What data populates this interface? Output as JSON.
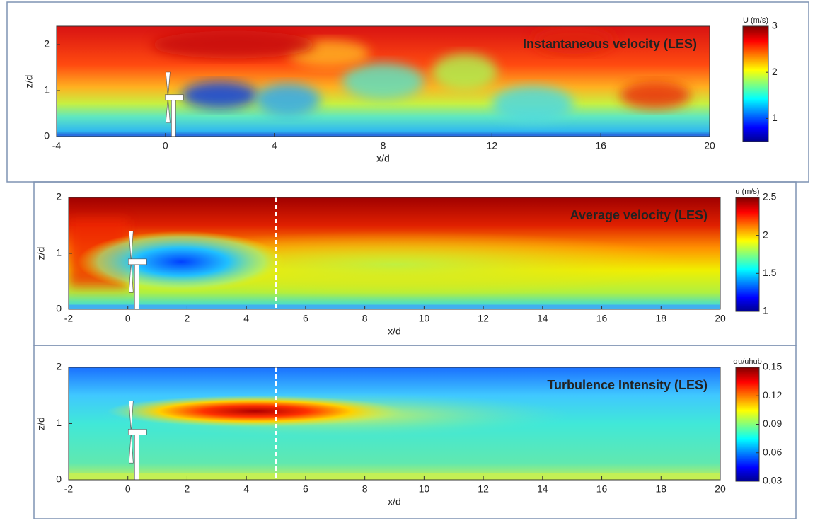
{
  "chart_data": [
    {
      "type": "heatmap",
      "title": "Instantaneous velocity (LES)",
      "title_color": "#ffffff",
      "xlabel": "x/d",
      "ylabel": "z/d",
      "xlim": [
        -4,
        20
      ],
      "xticks": [
        -4,
        0,
        4,
        8,
        12,
        16,
        20
      ],
      "ylim": [
        0,
        2.4
      ],
      "yticks": [
        0,
        1,
        2
      ],
      "colorbar": {
        "label": "U (m/s)",
        "lim": [
          0.5,
          3
        ],
        "ticks": [
          1,
          2,
          3
        ]
      }
    },
    {
      "type": "heatmap",
      "title": "Average velocity (LES)",
      "title_color": "#ffffff",
      "xlabel": "x/d",
      "ylabel": "z/d",
      "xlim": [
        -2,
        20
      ],
      "xticks": [
        -2,
        0,
        2,
        4,
        6,
        8,
        10,
        12,
        14,
        16,
        18,
        20
      ],
      "ylim": [
        0,
        2
      ],
      "yticks": [
        0,
        1,
        2
      ],
      "vline": 5,
      "colorbar": {
        "label": "u (m/s)",
        "lim": [
          1,
          2.5
        ],
        "ticks": [
          1,
          1.5,
          2,
          2.5
        ]
      }
    },
    {
      "type": "heatmap",
      "title": "Turbulence Intensity (LES)",
      "title_color": "#0b3d4f",
      "xlabel": "x/d",
      "ylabel": "z/d",
      "xlim": [
        -2,
        20
      ],
      "xticks": [
        -2,
        0,
        2,
        4,
        6,
        8,
        10,
        12,
        14,
        16,
        18,
        20
      ],
      "ylim": [
        0,
        2
      ],
      "yticks": [
        0,
        1,
        2
      ],
      "vline": 5,
      "colorbar": {
        "label": "σu/uhub",
        "lim": [
          0.03,
          0.15
        ],
        "ticks": [
          0.03,
          0.06,
          0.09,
          0.12,
          0.15
        ]
      }
    }
  ]
}
